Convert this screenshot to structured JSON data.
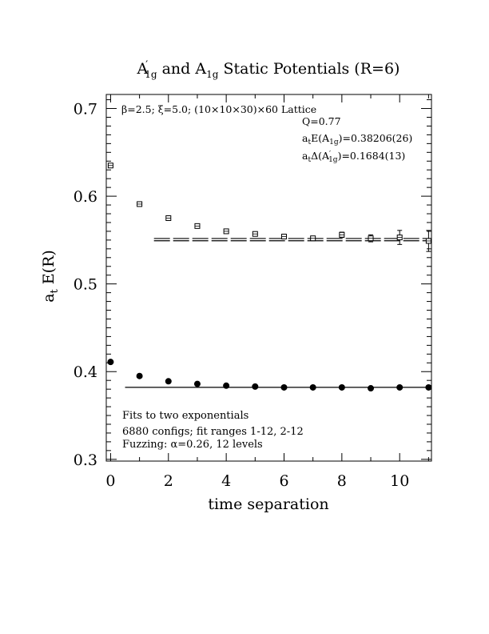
{
  "chart_data": {
    "type": "scatter",
    "title_parts": [
      "A",
      "′",
      "1g",
      " and A",
      "1g",
      " Static Potentials (R=6)"
    ],
    "xlabel": "time separation",
    "ylabel_parts": [
      "a",
      "t",
      " E(R)"
    ],
    "xlim": [
      -0.15,
      11.1
    ],
    "ylim": [
      0.298,
      0.716
    ],
    "xticks": [
      0,
      2,
      4,
      6,
      8,
      10
    ],
    "xtick_labels": [
      "0",
      "2",
      "4",
      "6",
      "8",
      "10"
    ],
    "yticks": [
      0.3,
      0.4,
      0.5,
      0.6,
      0.7
    ],
    "ytick_labels": [
      "0.3",
      "0.4",
      "0.5",
      "0.6",
      "0.7"
    ],
    "series": [
      {
        "marker": "square-open",
        "x": [
          0,
          1,
          2,
          3,
          4,
          5,
          6,
          7,
          8,
          9,
          10,
          11
        ],
        "y": [
          0.635,
          0.591,
          0.575,
          0.566,
          0.56,
          0.557,
          0.554,
          0.552,
          0.556,
          0.552,
          0.553,
          0.549
        ],
        "err": [
          0.001,
          0.001,
          0.001,
          0.001,
          0.001,
          0.001,
          0.002,
          0.002,
          0.003,
          0.004,
          0.008,
          0.012
        ]
      },
      {
        "marker": "circle-filled",
        "x": [
          0,
          1,
          2,
          3,
          4,
          5,
          6,
          7,
          8,
          9,
          10,
          11
        ],
        "y": [
          0.411,
          0.395,
          0.389,
          0.386,
          0.384,
          0.383,
          0.382,
          0.382,
          0.382,
          0.381,
          0.382,
          0.382
        ],
        "err": [
          0,
          0,
          0,
          0,
          0,
          0,
          0,
          0,
          0,
          0,
          0,
          0
        ]
      }
    ],
    "fit_lines": [
      {
        "x": [
          1.5,
          11.1
        ],
        "y": [
          0.5505,
          0.5505
        ],
        "style": "dashed-double",
        "upper": 0.5518,
        "lower": 0.5492
      },
      {
        "x": [
          0.5,
          11.1
        ],
        "y": [
          0.38206,
          0.38206
        ],
        "style": "solid"
      }
    ],
    "annotations": {
      "lattice": "β=2.5; ξ=5.0; (10×10×30)×60 Lattice",
      "q": "Q=0.77",
      "energy_parts": [
        "a",
        "t",
        "E(A",
        "1g",
        ")=0.38206(26)"
      ],
      "gap_parts": [
        "a",
        "t",
        "Δ(A",
        "′",
        "1g",
        ")=0.1684(13)"
      ],
      "footer_lines": [
        "Fits to two exponentials",
        "6880 configs; fit ranges 1-12, 2-12",
        "Fuzzing: α=0.26, 12 levels"
      ]
    }
  }
}
